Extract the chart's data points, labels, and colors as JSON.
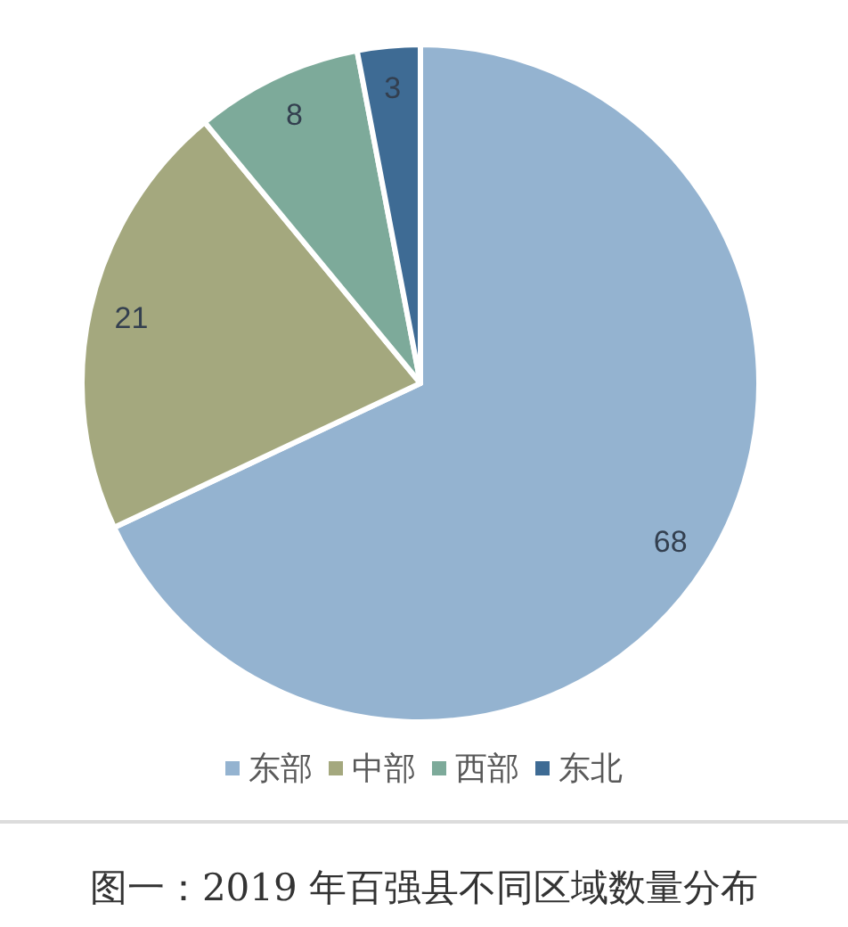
{
  "chart_data": {
    "type": "pie",
    "title": "图一：2019 年百强县不同区域数量分布",
    "categories": [
      "东部",
      "中部",
      "西部",
      "东北"
    ],
    "values": [
      68,
      21,
      8,
      3
    ],
    "colors": [
      "#94b3d0",
      "#a4a87e",
      "#7daa9a",
      "#3e6b94"
    ],
    "data_labels": true,
    "legend": "bottom"
  }
}
